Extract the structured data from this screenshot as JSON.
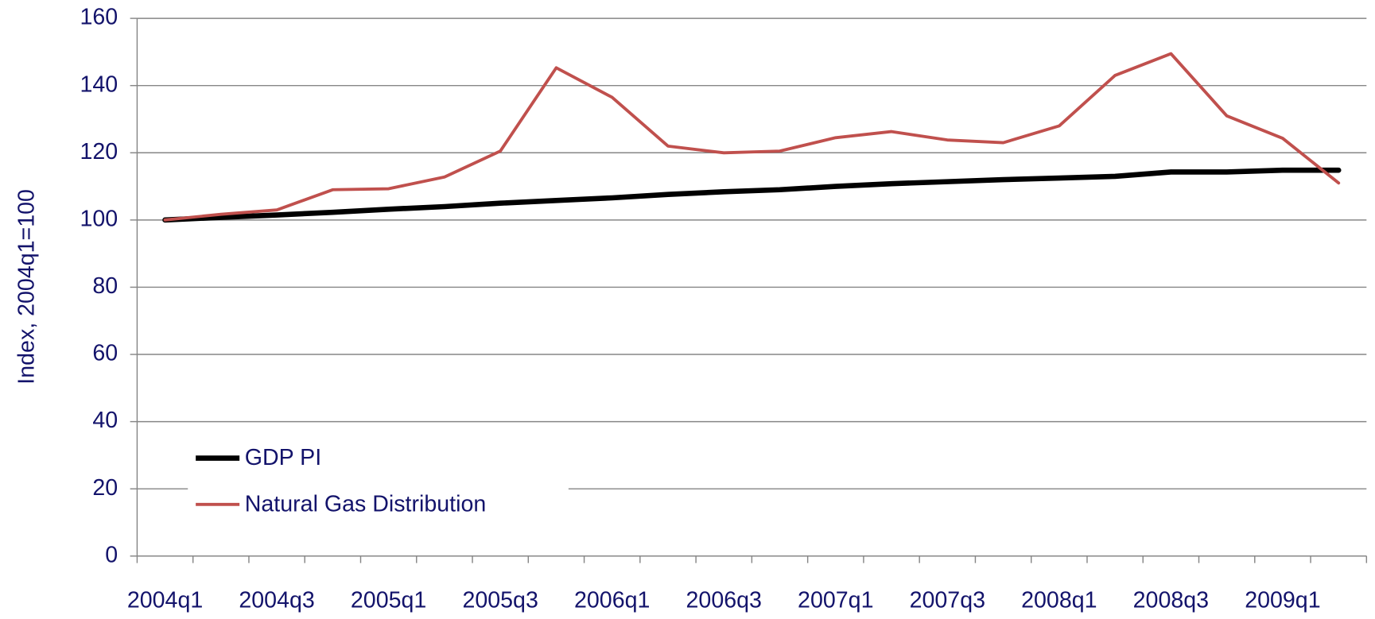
{
  "chart_data": {
    "type": "line",
    "y_label": "Index, 2004q1=100",
    "categories": [
      "2004q1",
      null,
      "2004q3",
      null,
      "2005q1",
      null,
      "2005q3",
      null,
      "2006q1",
      null,
      "2006q3",
      null,
      "2007q1",
      null,
      "2007q3",
      null,
      "2008q1",
      null,
      "2008q3",
      null,
      "2009q1",
      null
    ],
    "series": [
      {
        "name": "GDP PI",
        "color": "#000000",
        "values": [
          100,
          100.8,
          101.5,
          102.3,
          103.2,
          104,
          105,
          105.8,
          106.6,
          107.6,
          108.4,
          109,
          110,
          110.8,
          111.4,
          112,
          112.5,
          113,
          114.3,
          114.3,
          114.8,
          114.8
        ]
      },
      {
        "name": "Natural Gas Distribution",
        "color": "#c0504d",
        "values": [
          100,
          101.7,
          103,
          109,
          109.3,
          112.8,
          120.5,
          145.3,
          136.5,
          122,
          120,
          120.5,
          124.5,
          126.3,
          123.8,
          123,
          128,
          143,
          149.5,
          131,
          124.3,
          111
        ]
      }
    ],
    "ylim": [
      0,
      160
    ],
    "yticks": [
      0,
      20,
      40,
      60,
      80,
      100,
      120,
      140,
      160
    ],
    "grid": true,
    "legend": "lower left"
  }
}
